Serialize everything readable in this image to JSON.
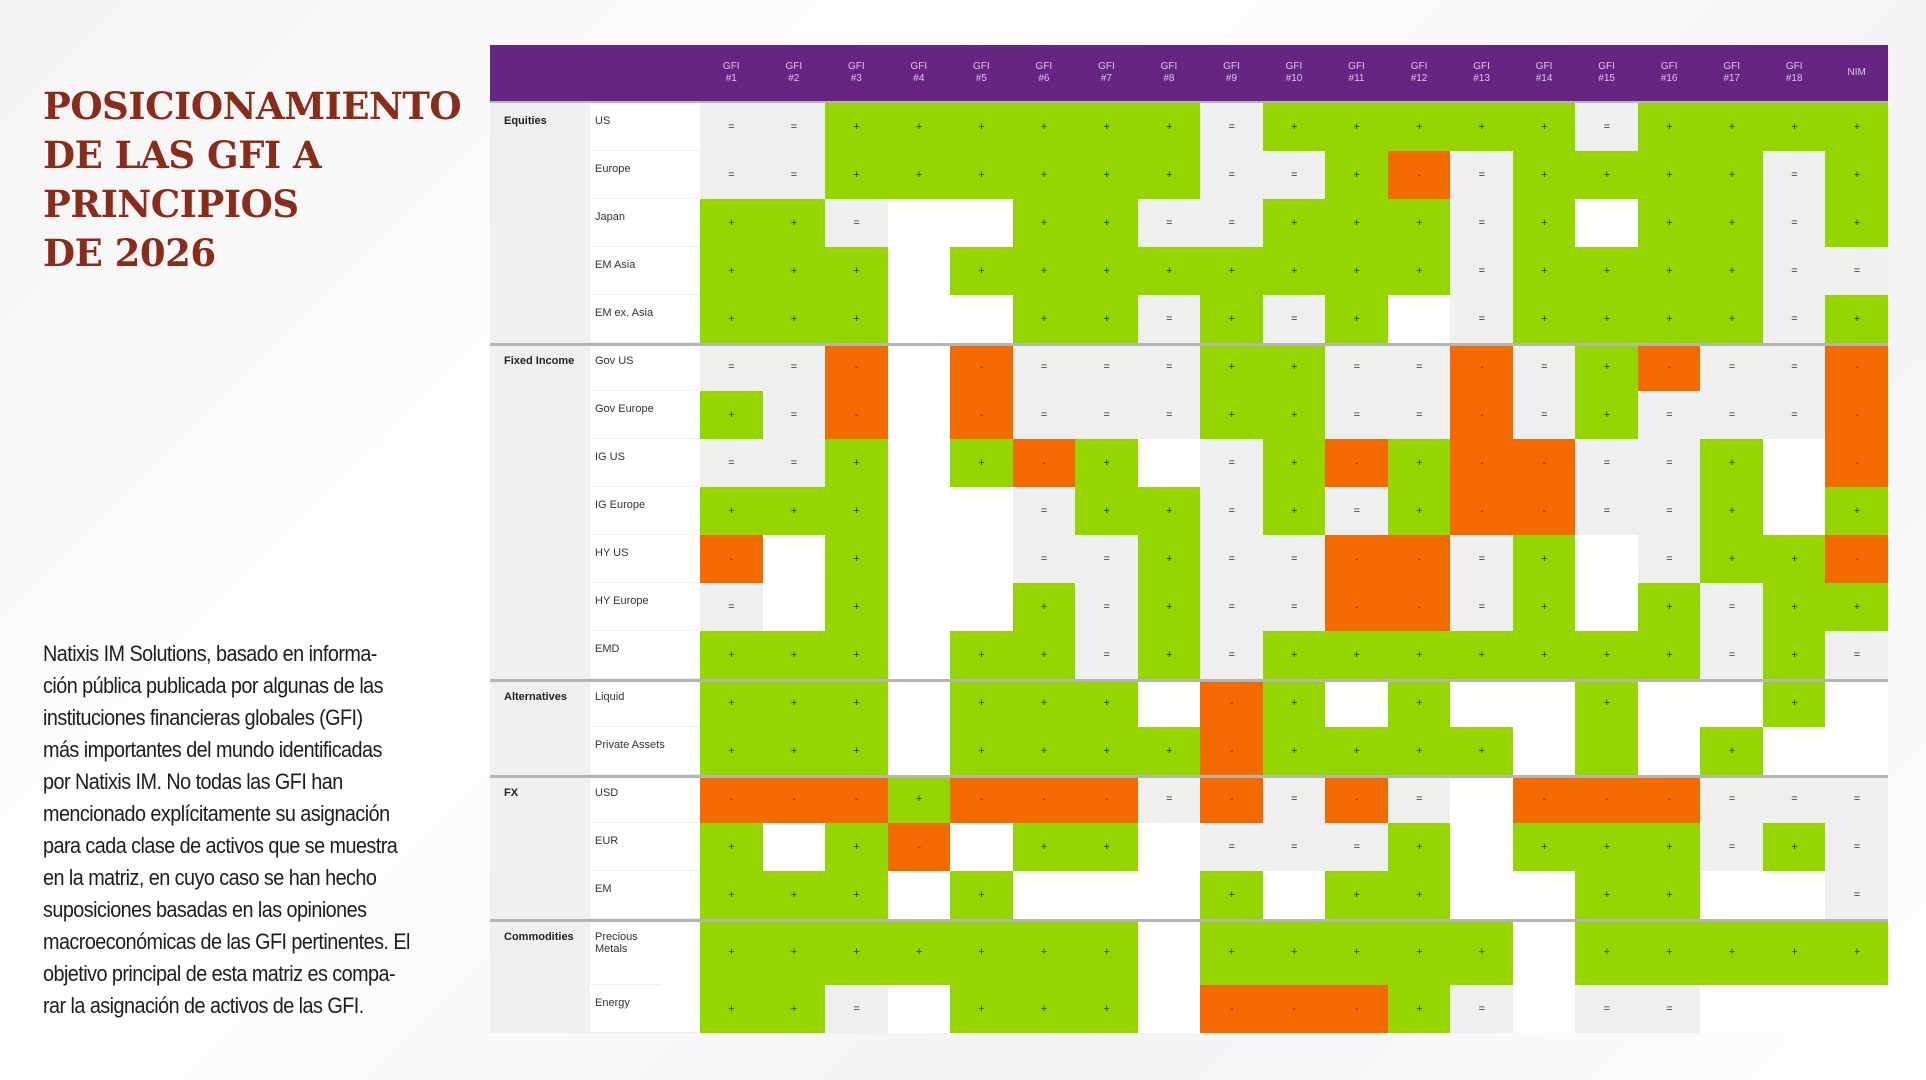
{
  "title": [
    "POSICIONAMIENTO",
    "DE LAS GFI A",
    "PRINCIPIOS",
    "DE 2026"
  ],
  "description": [
    "Natixis IM Solutions, basado en informa-",
    "ción pública publicada por algunas de las",
    "instituciones financieras globales (GFI)",
    "más importantes del mundo identificadas",
    "por Natixis IM. No todas las GFI han",
    "mencionado explícitamente su asignación",
    "para cada clase de activos que se muestra",
    "en la matriz, en cuyo caso se han hecho",
    "suposiciones basadas en las opiniones",
    "macroeconómicas de las GFI pertinentes. El",
    "objetivo principal de esta matriz es compa-",
    "rar la asignación de activos de las GFI."
  ],
  "colors": {
    "header": "#662483",
    "positive": "#95d600",
    "negative": "#f26a00",
    "neutral": "#efefef",
    "none": "#ffffff"
  },
  "chart_data": {
    "type": "heatmap",
    "legend": {
      "+": "positive",
      "-": "negative",
      "=": "neutral",
      "": "none",
      "g": "positive (no symbol)"
    },
    "columns": [
      {
        "l1": "GFI",
        "l2": "#1"
      },
      {
        "l1": "GFI",
        "l2": "#2"
      },
      {
        "l1": "GFI",
        "l2": "#3"
      },
      {
        "l1": "GFI",
        "l2": "#4"
      },
      {
        "l1": "GFI",
        "l2": "#5"
      },
      {
        "l1": "GFI",
        "l2": "#6"
      },
      {
        "l1": "GFI",
        "l2": "#7"
      },
      {
        "l1": "GFI",
        "l2": "#8"
      },
      {
        "l1": "GFI",
        "l2": "#9"
      },
      {
        "l1": "GFI",
        "l2": "#10"
      },
      {
        "l1": "GFI",
        "l2": "#11"
      },
      {
        "l1": "GFI",
        "l2": "#12"
      },
      {
        "l1": "GFI",
        "l2": "#13"
      },
      {
        "l1": "GFI",
        "l2": "#14"
      },
      {
        "l1": "GFI",
        "l2": "#15"
      },
      {
        "l1": "GFI",
        "l2": "#16"
      },
      {
        "l1": "GFI",
        "l2": "#17"
      },
      {
        "l1": "GFI",
        "l2": "#18"
      },
      {
        "l1": "",
        "l2": "NIM"
      }
    ],
    "rows": [
      {
        "group": "Equities",
        "label": "US",
        "cells": [
          "=",
          "=",
          "+",
          "+",
          "+",
          "+",
          "+",
          "+",
          "=",
          "+",
          "+",
          "+",
          "+",
          "+",
          "=",
          "+",
          "+",
          "+",
          "+"
        ]
      },
      {
        "group": "",
        "label": "Europe",
        "cells": [
          "=",
          "=",
          "+",
          "+",
          "+",
          "+",
          "+",
          "+",
          "=",
          "=",
          "+",
          "-",
          "=",
          "+",
          "+",
          "+",
          "+",
          "=",
          "+"
        ]
      },
      {
        "group": "",
        "label": "Japan",
        "cells": [
          "+",
          "+",
          "=",
          "",
          "",
          "+",
          "+",
          "=",
          "=",
          "+",
          "+",
          "+",
          "=",
          "+",
          "",
          "+",
          "+",
          "=",
          "+"
        ]
      },
      {
        "group": "",
        "label": "EM Asia",
        "cells": [
          "+",
          "+",
          "+",
          "",
          "+",
          "+",
          "+",
          "+",
          "+",
          "+",
          "+",
          "+",
          "=",
          "+",
          "+",
          "+",
          "+",
          "=",
          "="
        ]
      },
      {
        "group": "",
        "label": "EM ex. Asia",
        "cells": [
          "+",
          "+",
          "+",
          "",
          "",
          "+",
          "+",
          "=",
          "+",
          "=",
          "+",
          "",
          "=",
          "+",
          "+",
          "+",
          "+",
          "=",
          "+"
        ]
      },
      {
        "group": "Fixed Income",
        "label": "Gov US",
        "cells": [
          "=",
          "=",
          "-",
          "",
          "-",
          "=",
          "=",
          "=",
          "+",
          "+",
          "=",
          "=",
          "-",
          "=",
          "+",
          "-",
          "=",
          "=",
          "-"
        ]
      },
      {
        "group": "",
        "label": "Gov Europe",
        "cells": [
          "+",
          "=",
          "-",
          "",
          "-",
          "=",
          "=",
          "=",
          "+",
          "+",
          "=",
          "=",
          "-",
          "=",
          "+",
          "=",
          "=",
          "=",
          "-"
        ]
      },
      {
        "group": "",
        "label": "IG US",
        "cells": [
          "=",
          "=",
          "+",
          "",
          "+",
          "-",
          "+",
          "",
          "=",
          "+",
          "-",
          "+",
          "-",
          "-",
          "=",
          "=",
          "+",
          "",
          "-"
        ]
      },
      {
        "group": "",
        "label": "IG Europe",
        "cells": [
          "+",
          "+",
          "+",
          "",
          "",
          "=",
          "+",
          "+",
          "=",
          "+",
          "=",
          "+",
          "-",
          "-",
          "=",
          "=",
          "+",
          "",
          "+"
        ]
      },
      {
        "group": "",
        "label": "HY US",
        "cells": [
          "-",
          "",
          "+",
          "",
          "",
          "=",
          "=",
          "+",
          "=",
          "=",
          "-",
          "-",
          "=",
          "+",
          "",
          "=",
          "+",
          "+",
          "-"
        ]
      },
      {
        "group": "",
        "label": "HY Europe",
        "cells": [
          "=",
          "",
          "+",
          "",
          "",
          "+",
          "=",
          "+",
          "=",
          "=",
          "-",
          "-",
          "=",
          "+",
          "",
          "+",
          "=",
          "+",
          "+"
        ]
      },
      {
        "group": "",
        "label": "EMD",
        "cells": [
          "+",
          "+",
          "+",
          "",
          "+",
          "+",
          "=",
          "+",
          "=",
          "+",
          "+",
          "+",
          "+",
          "+",
          "+",
          "+",
          "=",
          "+",
          "="
        ]
      },
      {
        "group": "Alternatives",
        "label": "Liquid",
        "cells": [
          "+",
          "+",
          "+",
          "",
          "+",
          "+",
          "+",
          "",
          "-",
          "+",
          "",
          "+",
          "",
          "",
          "+",
          "",
          "",
          "+",
          ""
        ]
      },
      {
        "group": "",
        "label": "Private Assets",
        "cells": [
          "+",
          "+",
          "+",
          "",
          "+",
          "+",
          "+",
          "+",
          "-",
          "+",
          "+",
          "+",
          "+",
          "",
          "g",
          "",
          "+",
          "",
          ""
        ]
      },
      {
        "group": "FX",
        "label": "USD",
        "cells": [
          "-",
          "-",
          "-",
          "+",
          "-",
          "-",
          "-",
          "=",
          "-",
          "=",
          "-",
          "=",
          "",
          "-",
          "-",
          "-",
          "=",
          "=",
          "="
        ]
      },
      {
        "group": "",
        "label": "EUR",
        "cells": [
          "+",
          "",
          "+",
          "-",
          "",
          "+",
          "+",
          "",
          "=",
          "=",
          "=",
          "+",
          "",
          "+",
          "+",
          "+",
          "=",
          "+",
          "="
        ]
      },
      {
        "group": "",
        "label": "EM",
        "cells": [
          "+",
          "+",
          "+",
          "",
          "+",
          "",
          "",
          "",
          "+",
          "",
          "+",
          "+",
          "",
          "",
          "+",
          "+",
          "",
          "",
          "="
        ]
      },
      {
        "group": "Commodities",
        "label": "Precious Metals",
        "cells": [
          "+",
          "+",
          "+",
          "+",
          "+",
          "+",
          "+",
          "",
          "+",
          "+",
          "+",
          "+",
          "+",
          "",
          "+",
          "+",
          "+",
          "+",
          "+"
        ]
      },
      {
        "group": "",
        "label": "Energy",
        "cells": [
          "+",
          "+",
          "=",
          "",
          "+",
          "+",
          "+",
          "",
          "-",
          "-",
          "-",
          "+",
          "=",
          "",
          "=",
          "=",
          "",
          "",
          ""
        ]
      }
    ]
  }
}
